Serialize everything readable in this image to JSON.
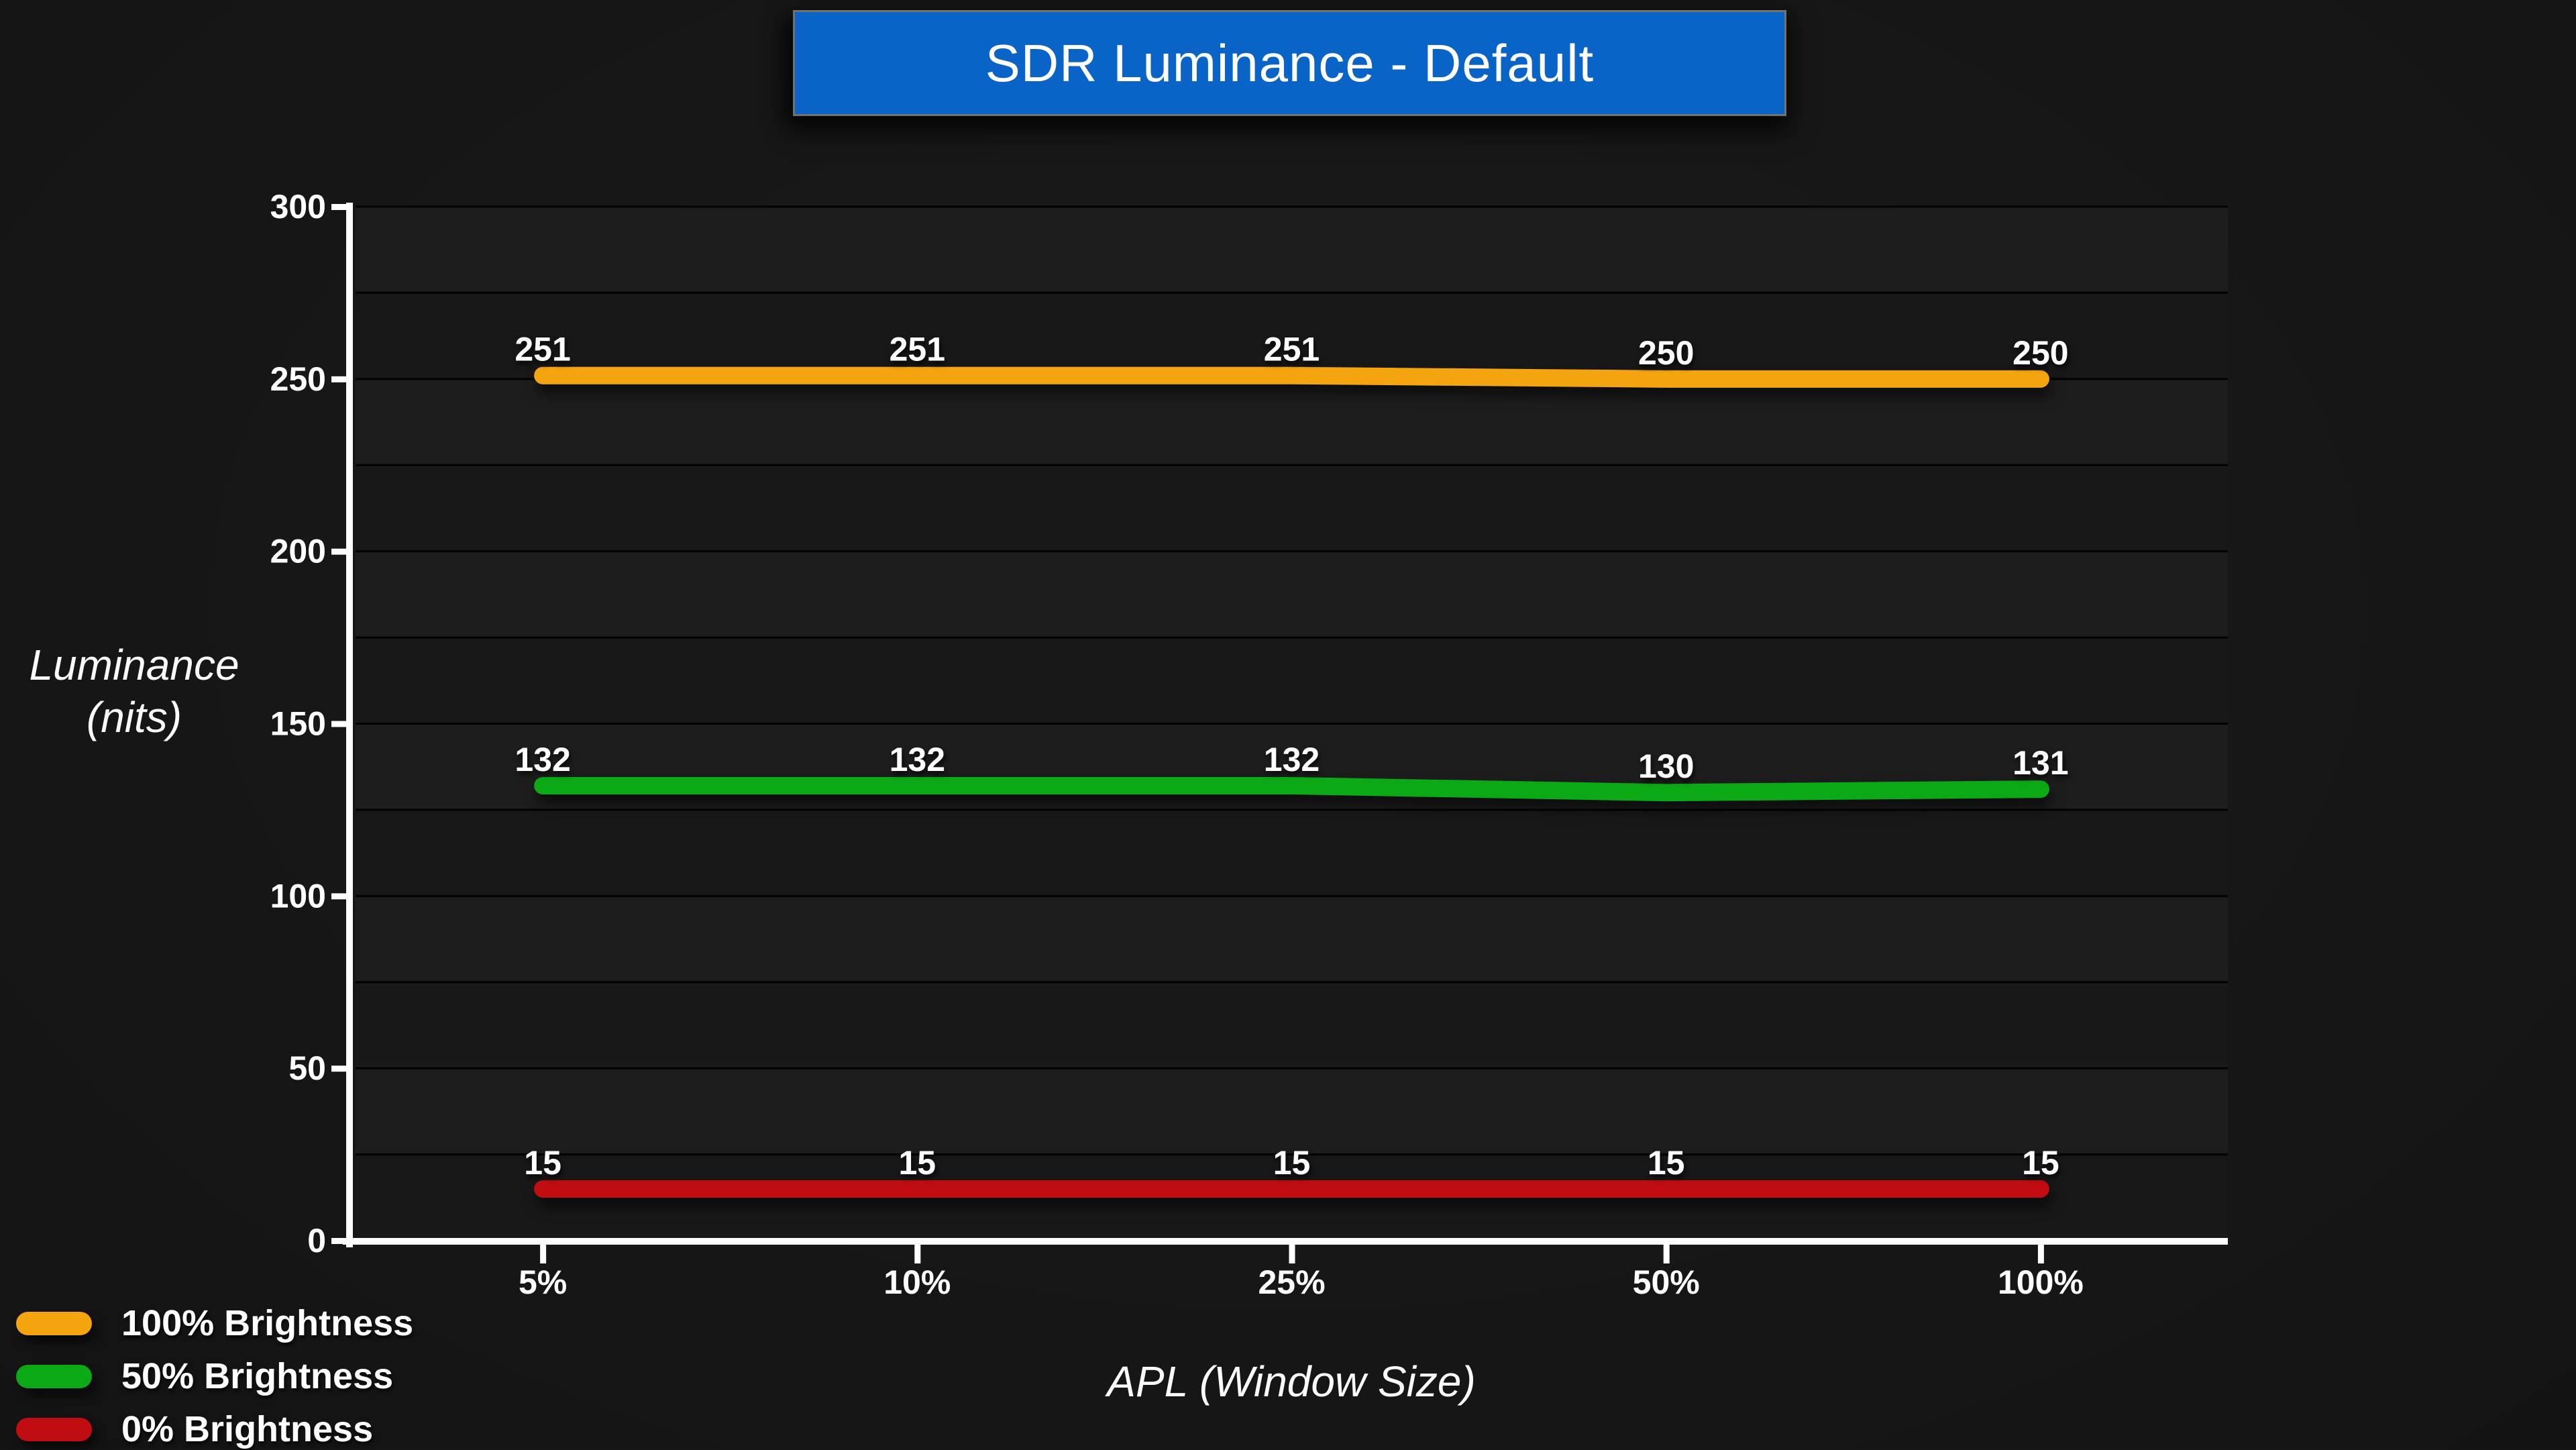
{
  "page": {
    "background": "#161616"
  },
  "title": {
    "text": "SDR Luminance - Default",
    "bar_color": "#0A64C8",
    "border_color": "#72726B",
    "text_color": "#FFFFFF"
  },
  "y_axis": {
    "title_line1": "Luminance",
    "title_line2": "(nits)",
    "ticks": [
      "0",
      "50",
      "100",
      "150",
      "200",
      "250",
      "300"
    ],
    "min": 0,
    "max": 300,
    "major_step": 50,
    "minor_step": 25
  },
  "x_axis": {
    "title": "APL (Window Size)",
    "categories": [
      "5%",
      "10%",
      "25%",
      "50%",
      "100%"
    ]
  },
  "legend": {
    "position": "bottom-left",
    "items": [
      "100% Brightness",
      "50% Brightness",
      "0% Brightness"
    ]
  },
  "colors": {
    "axis": "#FFFFFF",
    "grid_line": "#020202",
    "plot_band_light": "#1D1D1D",
    "plot_band_dark": "#181818",
    "label_text": "#FFFFFF"
  },
  "chart_data": {
    "type": "line",
    "title": "SDR Luminance - Default",
    "xlabel": "APL (Window Size)",
    "ylabel": "Luminance (nits)",
    "categories": [
      "5%",
      "10%",
      "25%",
      "50%",
      "100%"
    ],
    "series": [
      {
        "name": "100% Brightness",
        "color": "#F4A40F",
        "values": [
          251,
          251,
          251,
          250,
          250
        ]
      },
      {
        "name": "50% Brightness",
        "color": "#0BA915",
        "values": [
          132,
          132,
          132,
          130,
          131
        ]
      },
      {
        "name": "0% Brightness",
        "color": "#C10D12",
        "values": [
          15,
          15,
          15,
          15,
          15
        ]
      }
    ],
    "ylim": [
      0,
      300
    ],
    "grid": {
      "horizontal": true,
      "major_step": 50,
      "minor_step": 25
    },
    "legend_position": "bottom-left",
    "data_labels": true
  }
}
